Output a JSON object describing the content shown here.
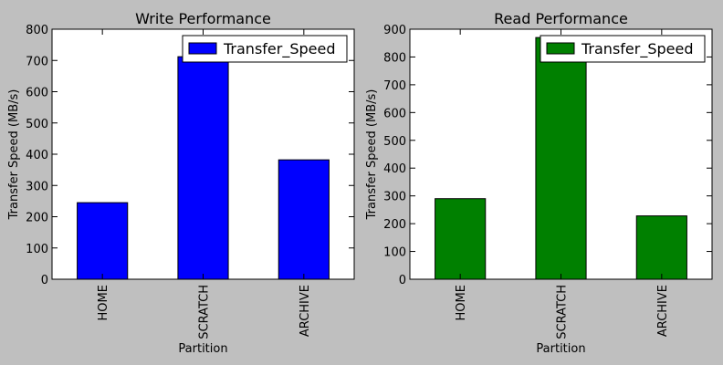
{
  "chart_data": [
    {
      "type": "bar",
      "title": "Write Performance",
      "xlabel": "Partition",
      "ylabel": "Transfer Speed (MB/s)",
      "categories": [
        "HOME",
        "SCRATCH",
        "ARCHIVE"
      ],
      "ylim": [
        0,
        800
      ],
      "yticks": [
        0,
        100,
        200,
        300,
        400,
        500,
        600,
        700,
        800
      ],
      "series": [
        {
          "name": "Transfer_Speed",
          "values": [
            245,
            712,
            382
          ],
          "color": "#0000ff"
        }
      ],
      "legend": "top-right",
      "grid": false
    },
    {
      "type": "bar",
      "title": "Read Performance",
      "xlabel": "Partition",
      "ylabel": "Transfer Speed (MB/s)",
      "categories": [
        "HOME",
        "SCRATCH",
        "ARCHIVE"
      ],
      "ylim": [
        0,
        900
      ],
      "yticks": [
        0,
        100,
        200,
        300,
        400,
        500,
        600,
        700,
        800,
        900
      ],
      "series": [
        {
          "name": "Transfer_Speed",
          "values": [
            290,
            870,
            228
          ],
          "color": "#008000"
        }
      ],
      "legend": "top-right",
      "grid": false
    }
  ]
}
